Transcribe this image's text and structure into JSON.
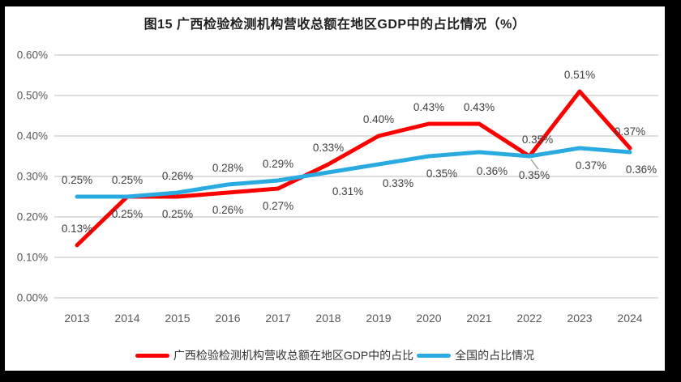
{
  "frame": {
    "border_color": "#000000",
    "background_color": "#FFFFFF"
  },
  "chart_data": {
    "type": "line",
    "title": "图15 广西检验检测机构营收总额在地区GDP中的占比情况（%）",
    "categories": [
      "2013",
      "2014",
      "2015",
      "2016",
      "2017",
      "2018",
      "2019",
      "2020",
      "2021",
      "2022",
      "2023",
      "2024"
    ],
    "y_axis": {
      "min": 0,
      "max": 0.6,
      "tick_step": 0.1,
      "tick_labels": [
        "0.00%",
        "0.10%",
        "0.20%",
        "0.30%",
        "0.40%",
        "0.50%",
        "0.60%"
      ],
      "unit": "%"
    },
    "grid": true,
    "gridline_color": "#D9D9D9",
    "axis_text_color": "#595959",
    "data_label_color": "#3F3F3F",
    "title_color": "#1F1F1F",
    "leader_line_color": "#A6A6A6",
    "legend_position": "bottom",
    "series": [
      {
        "name": "广西检验检测机构营收总额在地区GDP中的占比",
        "color": "#FC0000",
        "values": [
          0.13,
          0.25,
          0.25,
          0.26,
          0.27,
          0.33,
          0.4,
          0.43,
          0.43,
          0.35,
          0.51,
          0.37
        ],
        "labels": [
          "0.13%",
          "0.25%",
          "0.25%",
          "0.26%",
          "0.27%",
          "0.33%",
          "0.40%",
          "0.43%",
          "0.43%",
          "0.35%",
          "0.51%",
          "0.37%"
        ],
        "label_positions": [
          "above",
          "below",
          "below",
          "below",
          "below",
          "above",
          "above",
          "above",
          "above",
          "above",
          "above",
          "above"
        ],
        "label_offsets": {
          "9": {
            "dx": 10
          }
        }
      },
      {
        "name": "全国的占比情况",
        "color": "#29ABE2",
        "values": [
          0.25,
          0.25,
          0.26,
          0.28,
          0.29,
          0.31,
          0.33,
          0.35,
          0.36,
          0.35,
          0.37,
          0.36
        ],
        "labels": [
          "0.25%",
          "0.25%",
          "0.26%",
          "0.28%",
          "0.29%",
          "0.31%",
          "0.33%",
          "0.35%",
          "0.36%",
          "0.35%",
          "0.37%",
          "0.36%"
        ],
        "label_positions": [
          "above",
          "above",
          "above",
          "above",
          "above",
          "below",
          "below",
          "below",
          "below",
          "below",
          "below",
          "below"
        ],
        "label_offsets": {
          "5": {
            "dx": 24,
            "dy": 2
          },
          "6": {
            "dx": 24,
            "dy": 2
          },
          "7": {
            "dx": 16,
            "dy": 0
          },
          "8": {
            "dx": 16,
            "dy": 2
          },
          "9": {
            "dx": 6,
            "dy": 2,
            "leader": true
          },
          "10": {
            "dx": 14
          },
          "11": {
            "dx": 14
          }
        }
      }
    ]
  }
}
